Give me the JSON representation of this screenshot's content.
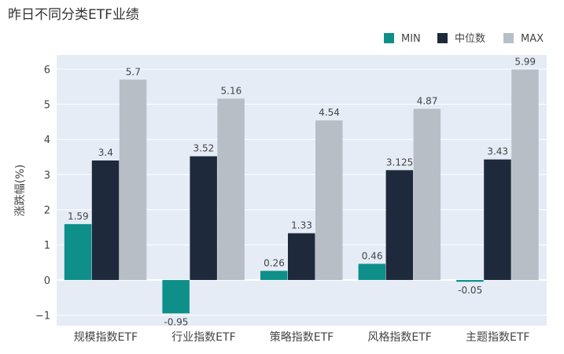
{
  "chart_data": {
    "type": "bar",
    "title": "昨日不同分类ETF业绩",
    "xlabel": "",
    "ylabel": "涨跌幅(%)",
    "categories": [
      "规模指数ETF",
      "行业指数ETF",
      "策略指数ETF",
      "风格指数ETF",
      "主题指数ETF"
    ],
    "series": [
      {
        "name": "MIN",
        "color": "#0e8f8a",
        "values": [
          1.59,
          -0.95,
          0.26,
          0.46,
          -0.05
        ],
        "labels": [
          "1.59",
          "-0.95",
          "0.26",
          "0.46",
          "-0.05"
        ]
      },
      {
        "name": "中位数",
        "color": "#1e293b",
        "values": [
          3.4,
          3.52,
          1.33,
          3.125,
          3.43
        ],
        "labels": [
          "3.4",
          "3.52",
          "1.33",
          "3.125",
          "3.43"
        ]
      },
      {
        "name": "MAX",
        "color": "#b8bec6",
        "values": [
          5.7,
          5.16,
          4.54,
          4.87,
          5.99
        ],
        "labels": [
          "5.7",
          "5.16",
          "4.54",
          "4.87",
          "5.99"
        ]
      }
    ],
    "ylim": [
      -1.3,
      6.4
    ],
    "yticks": [
      -1,
      0,
      1,
      2,
      3,
      4,
      5,
      6
    ],
    "ytick_labels": [
      "−1",
      "0",
      "1",
      "2",
      "3",
      "4",
      "5",
      "6"
    ],
    "grid": true,
    "legend": "top-right",
    "plot_background": "#e5ecf6"
  }
}
